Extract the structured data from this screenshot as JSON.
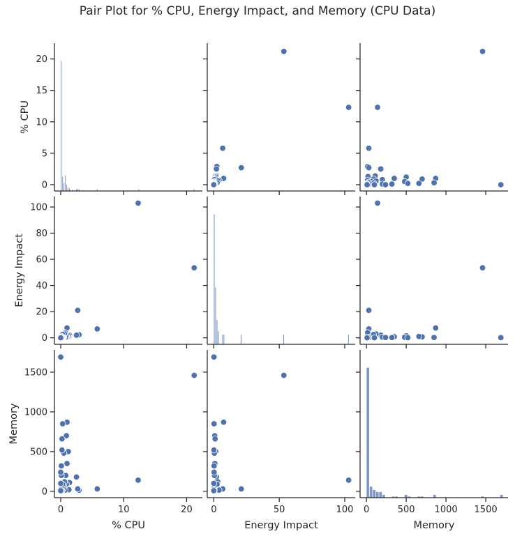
{
  "chart_data": {
    "type": "scatter",
    "title": "Pair Plot for % CPU, Energy Impact, and Memory (CPU Data)",
    "variables": [
      "% CPU",
      "Energy Impact",
      "Memory"
    ],
    "color": "#4c72b0",
    "hist_color": "#7d98c8",
    "grid": false,
    "axes": [
      {
        "name": "% CPU",
        "range": [
          -1.0,
          22.5
        ],
        "ticks": [
          0,
          10,
          20
        ],
        "row_ticks": [
          0,
          5,
          10,
          15,
          20
        ]
      },
      {
        "name": "Energy Impact",
        "range": [
          -5,
          108
        ],
        "ticks": [
          0,
          50,
          100
        ],
        "row_ticks": [
          0,
          20,
          40,
          60,
          80,
          100
        ]
      },
      {
        "name": "Memory",
        "range": [
          -80,
          1780
        ],
        "ticks": [
          0,
          500,
          1000,
          1500
        ],
        "row_ticks": [
          0,
          500,
          1000,
          1500
        ]
      }
    ],
    "points": [
      [
        21.2,
        53.5,
        1460
      ],
      [
        12.3,
        103.0,
        140
      ],
      [
        5.8,
        6.8,
        30
      ],
      [
        2.9,
        2.3,
        15
      ],
      [
        2.7,
        21.0,
        30
      ],
      [
        2.5,
        2.0,
        180
      ],
      [
        1.4,
        1.9,
        110
      ],
      [
        1.3,
        1.0,
        20
      ],
      [
        1.2,
        1.5,
        500
      ],
      [
        1.0,
        7.5,
        870
      ],
      [
        1.0,
        0.8,
        350
      ],
      [
        0.9,
        0.7,
        700
      ],
      [
        0.9,
        1.5,
        90
      ],
      [
        0.8,
        0.5,
        200
      ],
      [
        0.7,
        4.0,
        15
      ],
      [
        0.6,
        3.0,
        120
      ],
      [
        0.5,
        0.4,
        480
      ],
      [
        0.5,
        0.6,
        60
      ],
      [
        0.4,
        0.3,
        30
      ],
      [
        0.3,
        2.5,
        90
      ],
      [
        0.3,
        0.2,
        850
      ],
      [
        0.2,
        1.0,
        660
      ],
      [
        0.2,
        0.1,
        520
      ],
      [
        0.2,
        0.3,
        10
      ],
      [
        0.1,
        0.2,
        320
      ],
      [
        0.1,
        0.5,
        200
      ],
      [
        0.1,
        0.1,
        40
      ],
      [
        0.1,
        0.05,
        5
      ],
      [
        0.0,
        0.1,
        1690
      ],
      [
        0.0,
        0.2,
        240
      ],
      [
        0.0,
        0.0,
        100
      ],
      [
        0.0,
        0.05,
        20
      ],
      [
        0.0,
        0.0,
        8
      ]
    ],
    "histograms": [
      {
        "variable": "% CPU",
        "bins": [
          {
            "x0": 0.0,
            "x1": 0.22,
            "count": 20.0
          },
          {
            "x0": 0.22,
            "x1": 0.44,
            "count": 2.2
          },
          {
            "x0": 0.44,
            "x1": 0.66,
            "count": 1.2
          },
          {
            "x0": 0.66,
            "x1": 0.88,
            "count": 2.4
          },
          {
            "x0": 0.88,
            "x1": 1.1,
            "count": 1.0
          },
          {
            "x0": 1.1,
            "x1": 1.32,
            "count": 0.5
          },
          {
            "x0": 1.32,
            "x1": 1.54,
            "count": 0.4
          },
          {
            "x0": 1.76,
            "x1": 1.98,
            "count": 0.2
          },
          {
            "x0": 2.42,
            "x1": 2.64,
            "count": 0.3
          },
          {
            "x0": 2.64,
            "x1": 2.86,
            "count": 0.3
          },
          {
            "x0": 2.86,
            "x1": 3.08,
            "count": 0.3
          },
          {
            "x0": 5.72,
            "x1": 5.94,
            "count": 0.3
          },
          {
            "x0": 12.32,
            "x1": 12.54,
            "count": 0.3
          },
          {
            "x0": 21.12,
            "x1": 21.34,
            "count": 0.3
          }
        ]
      },
      {
        "variable": "Energy Impact",
        "bins": [
          {
            "x0": 0.0,
            "x1": 1.05,
            "count": 8.0
          },
          {
            "x0": 1.05,
            "x1": 2.1,
            "count": 3.5
          },
          {
            "x0": 2.1,
            "x1": 3.15,
            "count": 1.5
          },
          {
            "x0": 3.15,
            "x1": 4.2,
            "count": 0.8
          },
          {
            "x0": 6.3,
            "x1": 7.35,
            "count": 0.6
          },
          {
            "x0": 7.35,
            "x1": 8.4,
            "count": 0.6
          },
          {
            "x0": 20.5,
            "x1": 21.55,
            "count": 0.6
          },
          {
            "x0": 53.0,
            "x1": 54.05,
            "count": 0.6
          },
          {
            "x0": 102.5,
            "x1": 103.55,
            "count": 0.6
          }
        ]
      },
      {
        "variable": "Memory",
        "bins": [
          {
            "x0": 0,
            "x1": 40,
            "count": 20.0
          },
          {
            "x0": 40,
            "x1": 80,
            "count": 1.7
          },
          {
            "x0": 80,
            "x1": 120,
            "count": 1.2
          },
          {
            "x0": 120,
            "x1": 160,
            "count": 0.9
          },
          {
            "x0": 160,
            "x1": 200,
            "count": 0.9
          },
          {
            "x0": 200,
            "x1": 240,
            "count": 0.45
          },
          {
            "x0": 320,
            "x1": 360,
            "count": 0.2
          },
          {
            "x0": 360,
            "x1": 400,
            "count": 0.2
          },
          {
            "x0": 480,
            "x1": 520,
            "count": 0.45
          },
          {
            "x0": 520,
            "x1": 560,
            "count": 0.2
          },
          {
            "x0": 640,
            "x1": 680,
            "count": 0.2
          },
          {
            "x0": 680,
            "x1": 720,
            "count": 0.2
          },
          {
            "x0": 840,
            "x1": 880,
            "count": 0.45
          },
          {
            "x0": 1440,
            "x1": 1480,
            "count": 0.2
          },
          {
            "x0": 1680,
            "x1": 1720,
            "count": 0.45
          }
        ]
      }
    ]
  }
}
